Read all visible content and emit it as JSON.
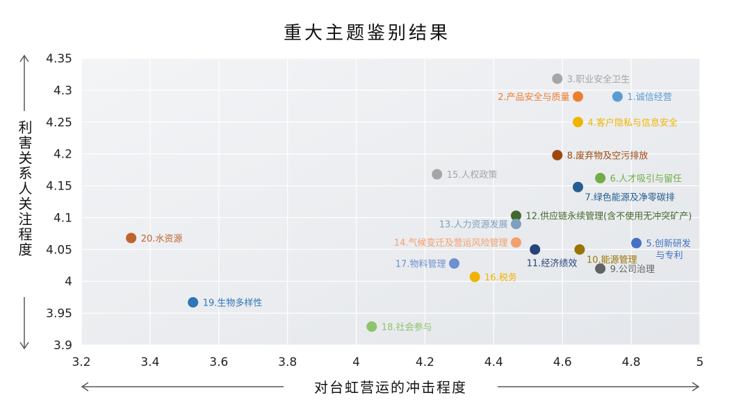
{
  "chart_data": {
    "type": "scatter",
    "title": "重大主题鉴别结果",
    "xlabel": "对台虹营运的冲击程度",
    "ylabel": "利害关系人关注程度",
    "xlim": [
      3.2,
      5
    ],
    "ylim": [
      3.9,
      4.35
    ],
    "xticks": [
      "3.2",
      "3.4",
      "3.6",
      "3.8",
      "4",
      "4.2",
      "4.4",
      "4.6",
      "4.8",
      "5"
    ],
    "yticks": [
      "3.9",
      "3.95",
      "4",
      "4.05",
      "4.1",
      "4.15",
      "4.2",
      "4.25",
      "4.3",
      "4.35"
    ],
    "grid": true,
    "points": [
      {
        "label": "1.诚信经营",
        "x": 4.76,
        "y": 4.29,
        "color": "#5b9bd5",
        "label_pos": "right"
      },
      {
        "label": "2.产品安全与质量",
        "x": 4.645,
        "y": 4.29,
        "color": "#ed7d31",
        "label_pos": "left"
      },
      {
        "label": "3.职业安全卫生",
        "x": 4.585,
        "y": 4.318,
        "color": "#a5a5a5",
        "label_pos": "right"
      },
      {
        "label": "4.客户隐私与信息安全",
        "x": 4.645,
        "y": 4.25,
        "color": "#f0b400",
        "label_pos": "right"
      },
      {
        "label": "5.创新研发",
        "label2": "与专利",
        "x": 4.815,
        "y": 4.06,
        "color": "#4472c4",
        "label_pos": "right"
      },
      {
        "label": "6.人才吸引与留任",
        "x": 4.71,
        "y": 4.162,
        "color": "#70ad47",
        "label_pos": "right"
      },
      {
        "label": "7.绿色能源及净零碳排",
        "x": 4.645,
        "y": 4.148,
        "color": "#255e91",
        "label_pos": "below-right"
      },
      {
        "label": "8.废弃物及空污排放",
        "x": 4.585,
        "y": 4.198,
        "color": "#9e480e",
        "label_pos": "right"
      },
      {
        "label": "9.公司治理",
        "x": 4.71,
        "y": 4.02,
        "color": "#636363",
        "label_pos": "right"
      },
      {
        "label": "10.能源管理",
        "x": 4.65,
        "y": 4.05,
        "color": "#997300",
        "label_pos": "below-right"
      },
      {
        "label": "11.经济绩效",
        "x": 4.52,
        "y": 4.05,
        "color": "#264478",
        "label_pos": "below"
      },
      {
        "label": "12.供应链永续管理(含不使用无冲突矿产)",
        "x": 4.465,
        "y": 4.103,
        "color": "#43682b",
        "label_pos": "right"
      },
      {
        "label": "13.人力资源发展",
        "x": 4.465,
        "y": 4.09,
        "color": "#7f9fbf",
        "label_pos": "left"
      },
      {
        "label": "14.气候变迁及营运风险管理",
        "x": 4.465,
        "y": 4.061,
        "color": "#f4a06b",
        "label_pos": "left"
      },
      {
        "label": "15.人权政策",
        "x": 4.235,
        "y": 4.168,
        "color": "#a5a5a5",
        "label_pos": "right"
      },
      {
        "label": "16.税务",
        "x": 4.345,
        "y": 4.007,
        "color": "#f0b400",
        "label_pos": "right"
      },
      {
        "label": "17.物料管理",
        "x": 4.285,
        "y": 4.028,
        "color": "#6f8fd0",
        "label_pos": "left"
      },
      {
        "label": "18.社会参与",
        "x": 4.045,
        "y": 3.929,
        "color": "#8dc36a",
        "label_pos": "right"
      },
      {
        "label": "19.生物多样性",
        "x": 3.525,
        "y": 3.967,
        "color": "#2e75b6",
        "label_pos": "right"
      },
      {
        "label": "20.水资源",
        "x": 3.345,
        "y": 4.068,
        "color": "#c0622e",
        "label_pos": "right"
      }
    ]
  }
}
